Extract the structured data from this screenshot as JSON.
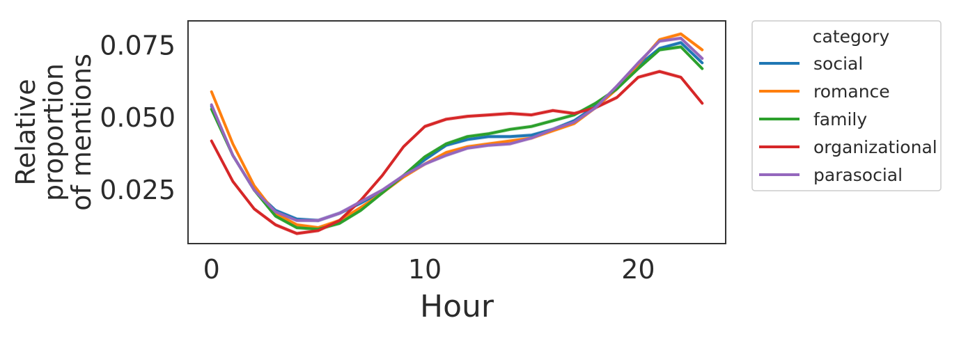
{
  "chart_data": {
    "type": "line",
    "xlabel": "Hour",
    "ylabel_lines": [
      "Relative",
      "proportion",
      "of mentions"
    ],
    "xlim": [
      -1.1,
      24.1
    ],
    "ylim": [
      0.0065,
      0.0835
    ],
    "x_ticks": [
      0,
      10,
      20
    ],
    "y_ticks": [
      0.025,
      0.05,
      0.075
    ],
    "y_tick_labels": [
      "0.025",
      "0.050",
      "0.075"
    ],
    "grid": false,
    "legend": {
      "title": "category",
      "placement": "outside-right"
    },
    "x": [
      0,
      1,
      2,
      3,
      4,
      5,
      6,
      7,
      8,
      9,
      10,
      11,
      12,
      13,
      14,
      15,
      16,
      17,
      18,
      19,
      20,
      21,
      22,
      23
    ],
    "series": [
      {
        "name": "social",
        "color": "#1f77b4",
        "values": [
          0.054,
          0.037,
          0.025,
          0.018,
          0.015,
          0.0145,
          0.017,
          0.0205,
          0.0245,
          0.03,
          0.0355,
          0.0405,
          0.0425,
          0.0435,
          0.0435,
          0.044,
          0.046,
          0.049,
          0.054,
          0.06,
          0.068,
          0.074,
          0.076,
          0.069
        ]
      },
      {
        "name": "romance",
        "color": "#ff7f0e",
        "values": [
          0.059,
          0.041,
          0.0265,
          0.017,
          0.013,
          0.012,
          0.0145,
          0.019,
          0.024,
          0.0295,
          0.034,
          0.038,
          0.04,
          0.041,
          0.042,
          0.043,
          0.0455,
          0.048,
          0.0535,
          0.06,
          0.0685,
          0.077,
          0.079,
          0.0735
        ]
      },
      {
        "name": "family",
        "color": "#2ca02c",
        "values": [
          0.053,
          0.037,
          0.025,
          0.016,
          0.012,
          0.0115,
          0.0135,
          0.018,
          0.024,
          0.03,
          0.0365,
          0.041,
          0.0435,
          0.0445,
          0.046,
          0.047,
          0.049,
          0.051,
          0.055,
          0.06,
          0.067,
          0.0735,
          0.0745,
          0.067
        ]
      },
      {
        "name": "organizational",
        "color": "#d62728",
        "values": [
          0.042,
          0.028,
          0.0185,
          0.013,
          0.01,
          0.011,
          0.0145,
          0.0215,
          0.03,
          0.04,
          0.047,
          0.0495,
          0.0505,
          0.051,
          0.0515,
          0.051,
          0.0525,
          0.0515,
          0.0535,
          0.057,
          0.064,
          0.066,
          0.064,
          0.055
        ]
      },
      {
        "name": "parasocial",
        "color": "#9467bd",
        "values": [
          0.0545,
          0.037,
          0.025,
          0.0175,
          0.0145,
          0.0145,
          0.017,
          0.021,
          0.025,
          0.03,
          0.034,
          0.037,
          0.0395,
          0.0405,
          0.041,
          0.043,
          0.046,
          0.0485,
          0.0535,
          0.061,
          0.069,
          0.0765,
          0.0775,
          0.0705
        ]
      }
    ]
  }
}
